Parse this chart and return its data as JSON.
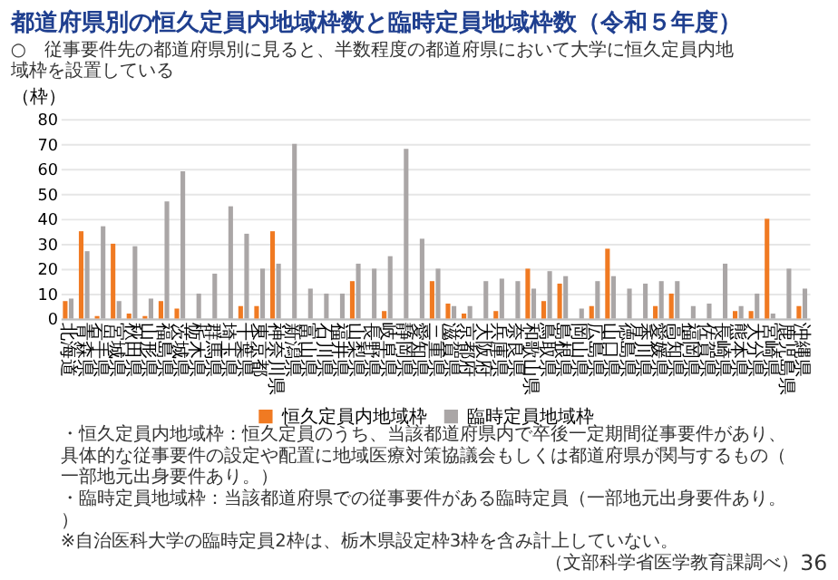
{
  "chart_data": {
    "type": "bar",
    "title": "都道府県別の恒久定員内地域枠数と臨時定員地域枠数（令和５年度）",
    "subtitle": "○　従事要件先の都道府県別に見ると、半数程度の都道府県において大学に恒久定員内地域枠を設置している",
    "ylabel": "（枠）",
    "categories": [
      "北海道",
      "青森県",
      "岩手県",
      "宮城県",
      "秋田県",
      "山形県",
      "福島県",
      "茨城県",
      "栃木県",
      "群馬県",
      "埼玉県",
      "千葉県",
      "東京都",
      "神奈川県",
      "新潟県",
      "富山県",
      "石川県",
      "福井県",
      "山梨県",
      "長野県",
      "岐阜県",
      "静岡県",
      "愛知県",
      "三重県",
      "滋賀県",
      "京都府",
      "大阪府",
      "兵庫県",
      "奈良県",
      "和歌山県",
      "鳥取県",
      "島根県",
      "岡山県",
      "広島県",
      "山口県",
      "徳島県",
      "香川県",
      "愛媛県",
      "高知県",
      "福岡県",
      "佐賀県",
      "長崎県",
      "熊本県",
      "大分県",
      "宮崎県",
      "鹿児島県",
      "沖縄県"
    ],
    "series": [
      {
        "name": "恒久定員内地域枠",
        "color": "#f07a22",
        "values": [
          7,
          35,
          1,
          30,
          2,
          1,
          7,
          4,
          0,
          0,
          0,
          5,
          5,
          35,
          0,
          0,
          0,
          0,
          15,
          0,
          3,
          0,
          0,
          15,
          6,
          2,
          0,
          3,
          0,
          20,
          7,
          14,
          0,
          5,
          28,
          0,
          0,
          5,
          10,
          0,
          0,
          0,
          3,
          3,
          40,
          0,
          5
        ]
      },
      {
        "name": "臨時定員地域枠",
        "color": "#aaa6a6",
        "values": [
          8,
          27,
          37,
          7,
          29,
          8,
          47,
          59,
          10,
          18,
          45,
          34,
          20,
          22,
          70,
          12,
          10,
          10,
          22,
          20,
          25,
          68,
          32,
          20,
          5,
          5,
          15,
          16,
          15,
          12,
          19,
          17,
          4,
          15,
          17,
          12,
          14,
          15,
          15,
          5,
          6,
          22,
          5,
          10,
          2,
          20,
          12
        ]
      }
    ],
    "ylim": [
      0,
      80
    ],
    "yticks": [
      0,
      10,
      20,
      30,
      40,
      50,
      60,
      70,
      80
    ],
    "grid": "y",
    "legend": "bottom",
    "annotations": [
      "・恒久定員内地域枠：恒久定員のうち、当該都道府県内で卒後一定期間従事要件があり、具体的な従事要件の設定や配置に地域医療対策協議会もしくは都道府県が関与するもの（一部地元出身要件あり。）",
      "・臨時定員地域枠：当該都道府県での従事要件がある臨時定員（一部地元出身要件あり。）",
      "※自治医科大学の臨時定員2枠は、栃木県設定枠3枠を含み計上していない。",
      "（文部科学省医学教育課調べ）",
      "36"
    ]
  }
}
